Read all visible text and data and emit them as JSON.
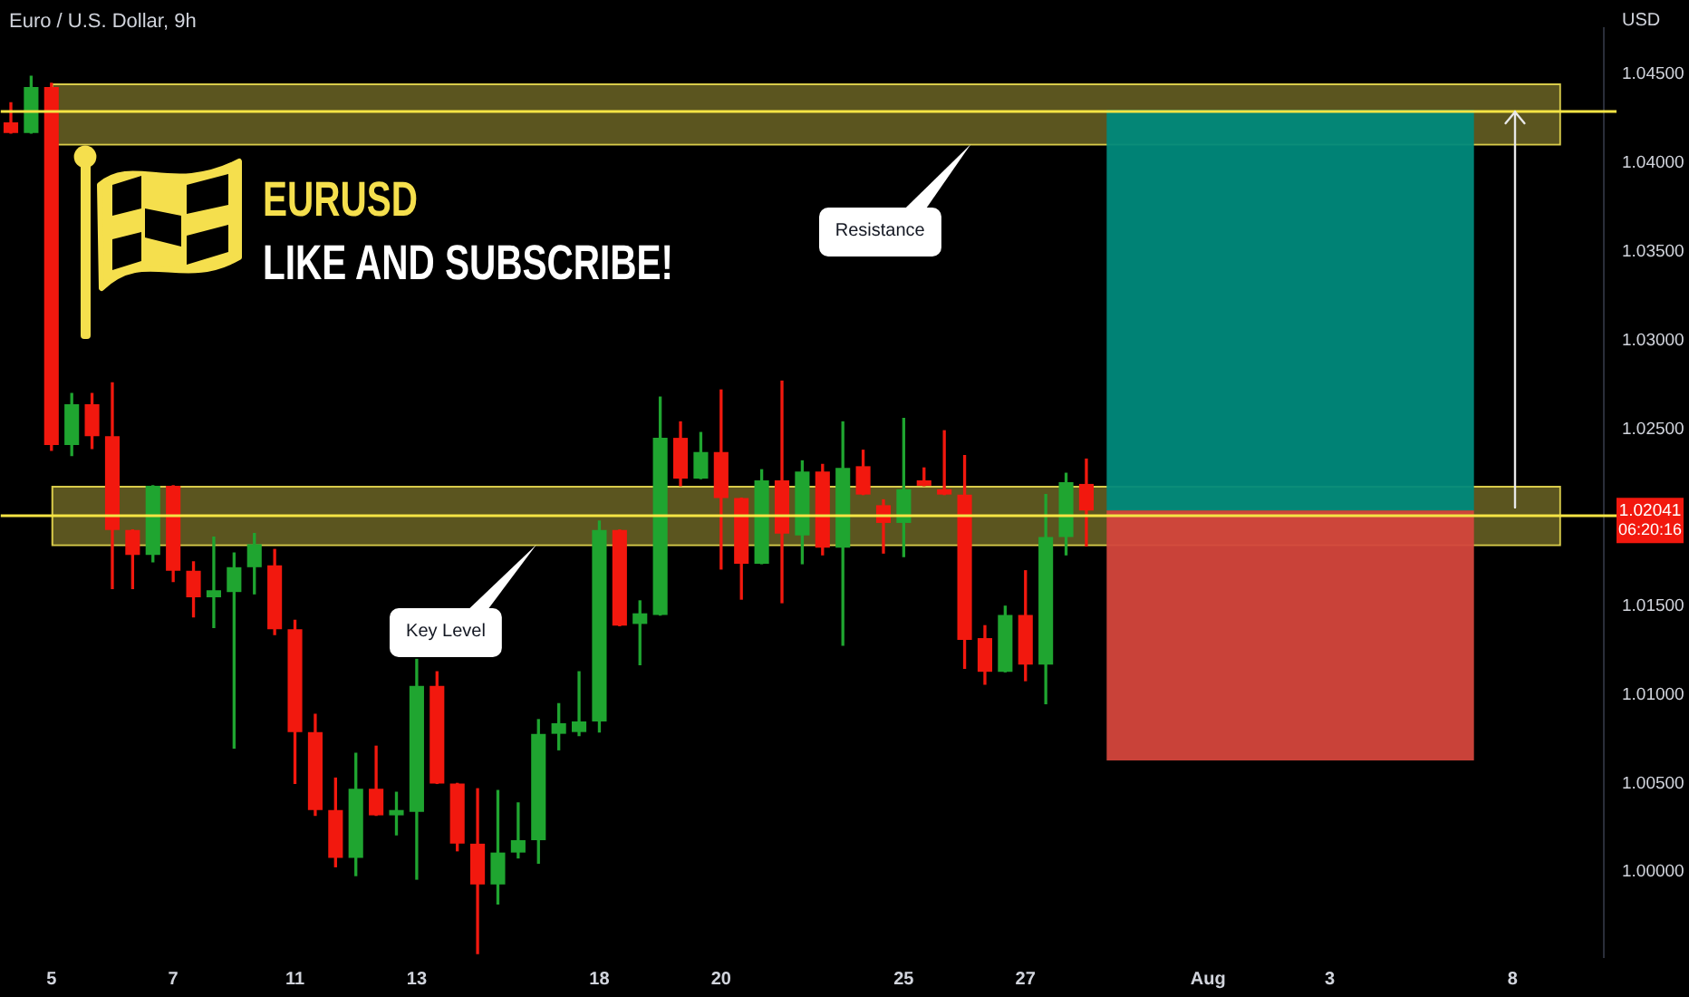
{
  "chart_data": {
    "type": "candlestick",
    "title": "Euro / U.S. Dollar, 9h",
    "ylabel": "USD",
    "categories": [
      null,
      null,
      "5",
      null,
      null,
      null,
      null,
      null,
      "7",
      null,
      null,
      null,
      null,
      null,
      "11",
      null,
      null,
      null,
      null,
      null,
      "13",
      null,
      null,
      null,
      null,
      null,
      null,
      null,
      null,
      "18",
      null,
      null,
      null,
      null,
      null,
      "20",
      null,
      null,
      null,
      null,
      null,
      null,
      null,
      null,
      "25",
      null,
      null,
      null,
      null,
      null,
      "27",
      null,
      null,
      null,
      null,
      null,
      null,
      null,
      null,
      "Aug",
      null,
      null,
      null,
      null,
      null,
      "3",
      null,
      null,
      null,
      null,
      null,
      null,
      null,
      null,
      "8",
      null,
      null,
      null,
      null
    ],
    "ohlc": [
      [
        1.0423,
        1.0434,
        1.0417,
        1.0417
      ],
      [
        1.0417,
        1.0449,
        1.0417,
        1.0443
      ],
      [
        1.0443,
        1.0445,
        1.0238,
        1.0241
      ],
      [
        1.0241,
        1.027,
        1.0235,
        1.0264
      ],
      [
        1.0264,
        1.027,
        1.0239,
        1.0246
      ],
      [
        1.0246,
        1.0276,
        1.016,
        1.0193
      ],
      [
        1.0193,
        1.0193,
        1.016,
        1.0179
      ],
      [
        1.0179,
        1.0218,
        1.0175,
        1.0218
      ],
      [
        1.0218,
        1.0218,
        1.0164,
        1.017
      ],
      [
        1.017,
        1.0175,
        1.0144,
        1.0155
      ],
      [
        1.0155,
        1.0189,
        1.0138,
        1.0159
      ],
      [
        1.0158,
        1.018,
        1.007,
        1.0172
      ],
      [
        1.0172,
        1.0191,
        1.0157,
        1.0185
      ],
      [
        1.0173,
        1.0182,
        1.0134,
        1.0137
      ],
      [
        1.0137,
        1.0142,
        1.005,
        1.0079
      ],
      [
        1.0079,
        1.0089,
        1.0032,
        1.0035
      ],
      [
        1.0035,
        1.0053,
        1.0003,
        1.0008
      ],
      [
        1.0008,
        1.0067,
        0.9998,
        1.0047
      ],
      [
        1.0047,
        1.0071,
        1.0032,
        1.0032
      ],
      [
        1.0032,
        1.0045,
        1.0021,
        1.0035
      ],
      [
        1.0034,
        1.012,
        0.9996,
        1.0105
      ],
      [
        1.0105,
        1.0113,
        1.005,
        1.005
      ],
      [
        1.005,
        1.005,
        1.0012,
        1.0016
      ],
      [
        1.0016,
        1.0047,
        0.9954,
        0.9993
      ],
      [
        0.9993,
        1.0046,
        0.9982,
        1.0011
      ],
      [
        1.0011,
        1.0039,
        1.0008,
        1.0018
      ],
      [
        1.0018,
        1.0086,
        1.0005,
        1.0078
      ],
      [
        1.0078,
        1.0095,
        1.0069,
        1.0084
      ],
      [
        1.0079,
        1.0113,
        1.0077,
        1.0085
      ],
      [
        1.0085,
        1.0198,
        1.0079,
        1.0193
      ],
      [
        1.0193,
        1.0193,
        1.0139,
        1.0139
      ],
      [
        1.014,
        1.0153,
        1.0117,
        1.0146
      ],
      [
        1.0145,
        1.0268,
        1.0145,
        1.0245
      ],
      [
        1.0245,
        1.0254,
        1.0218,
        1.0222
      ],
      [
        1.0222,
        1.0248,
        1.0222,
        1.0237
      ],
      [
        1.0237,
        1.0272,
        1.0171,
        1.0211
      ],
      [
        1.0211,
        1.0211,
        1.0154,
        1.0174
      ],
      [
        1.0174,
        1.0227,
        1.0174,
        1.0221
      ],
      [
        1.0221,
        1.0277,
        1.0152,
        1.0191
      ],
      [
        1.019,
        1.0232,
        1.0174,
        1.0226
      ],
      [
        1.0226,
        1.023,
        1.0179,
        1.0183
      ],
      [
        1.0183,
        1.0254,
        1.0128,
        1.0228
      ],
      [
        1.0229,
        1.0238,
        1.0213,
        1.0213
      ],
      [
        1.0207,
        1.021,
        1.018,
        1.0197
      ],
      [
        1.0197,
        1.0256,
        1.0178,
        1.0216
      ],
      [
        1.0221,
        1.0228,
        1.0218,
        1.0218
      ],
      [
        1.0216,
        1.0249,
        1.0213,
        1.0213
      ],
      [
        1.0213,
        1.0235,
        1.0115,
        1.0131
      ],
      [
        1.0132,
        1.0139,
        1.0106,
        1.0113
      ],
      [
        1.0113,
        1.015,
        1.0113,
        1.0145
      ],
      [
        1.0145,
        1.017,
        1.0108,
        1.0117
      ],
      [
        1.0117,
        1.0213,
        1.0095,
        1.0189
      ],
      [
        1.0189,
        1.0225,
        1.0179,
        1.022
      ],
      [
        1.0219,
        1.0233,
        1.0184,
        1.0204
      ],
      null,
      null,
      null,
      null,
      null,
      null,
      null,
      null,
      null,
      null,
      null,
      null,
      null,
      null,
      null,
      null,
      null,
      null,
      null,
      null,
      null,
      null,
      null,
      null,
      null
    ],
    "colors": [
      "#f2180e",
      "#1fa530",
      "#f2180e",
      "#1fa530",
      "#f2180e",
      "#f2180e",
      "#f2180e",
      "#1fa530",
      "#f2180e",
      "#f2180e",
      "#1fa530",
      "#1fa530",
      "#1fa530",
      "#f2180e",
      "#f2180e",
      "#f2180e",
      "#f2180e",
      "#1fa530",
      "#f2180e",
      "#1fa530",
      "#1fa530",
      "#f2180e",
      "#f2180e",
      "#f2180e",
      "#1fa530",
      "#1fa530",
      "#1fa530",
      "#1fa530",
      "#1fa530",
      "#1fa530",
      "#f2180e",
      "#1fa530",
      "#1fa530",
      "#f2180e",
      "#1fa530",
      "#f2180e",
      "#f2180e",
      "#1fa530",
      "#f2180e",
      "#1fa530",
      "#f2180e",
      "#1fa530",
      "#f2180e",
      "#f2180e",
      "#1fa530",
      "#f2180e",
      "#f2180e",
      "#f2180e",
      "#f2180e",
      "#1fa530",
      "#f2180e",
      "#1fa530",
      "#1fa530",
      "#f2180e",
      null,
      null,
      null,
      null,
      null,
      null,
      null,
      null,
      null,
      null,
      null,
      null,
      null,
      null,
      null,
      null,
      null,
      null,
      null,
      null,
      null,
      null,
      null,
      null,
      null
    ],
    "ylim": [
      0.9952,
      1.0476
    ],
    "yticks": [
      {
        "value": 1.0,
        "label": "1.00000"
      },
      {
        "value": 1.005,
        "label": "1.00500"
      },
      {
        "value": 1.01,
        "label": "1.01000"
      },
      {
        "value": 1.015,
        "label": "1.01500"
      },
      {
        "value": 1.025,
        "label": "1.02500"
      },
      {
        "value": 1.03,
        "label": "1.03000"
      },
      {
        "value": 1.035,
        "label": "1.03500"
      },
      {
        "value": 1.04,
        "label": "1.04000"
      },
      {
        "value": 1.045,
        "label": "1.04500"
      }
    ],
    "bands": [
      {
        "axis": "y",
        "from": 1.0411,
        "to": 1.0445,
        "color": "#d8cb4a"
      },
      {
        "axis": "y",
        "from": 1.0185,
        "to": 1.0218,
        "color": "#d8cb4a"
      },
      {
        "axis": "y",
        "from": 1.0204,
        "to": 1.043,
        "color": "#00897b"
      },
      {
        "axis": "y",
        "from": 1.0063,
        "to": 1.0204,
        "color": "#d4463c"
      }
    ],
    "ref_lines": [
      {
        "axis": "y",
        "value": 1.043,
        "color": "#f5e444"
      },
      {
        "axis": "y",
        "value": 1.0202,
        "color": "#f5e444"
      }
    ],
    "annotations": [
      "EURUSD",
      "LIKE AND SUBSCRIBE!",
      "Resistance",
      "Key Level",
      "1.02041",
      "06:20:16"
    ],
    "grid": false
  }
}
